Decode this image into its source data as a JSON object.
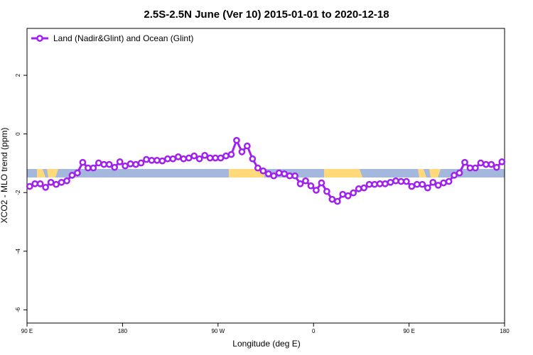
{
  "chart_data": {
    "type": "line",
    "title": "2.5S-2.5N June (Ver 10)   2015-01-01 to 2020-12-18",
    "xlabel": "Longitude (deg E)",
    "ylabel": "XCO2 - MLO trend (ppm)",
    "xlim": [
      90,
      540
    ],
    "ylim": [
      -6.45,
      3.6
    ],
    "xticks": [
      {
        "value": 90,
        "label": "90 E"
      },
      180,
      {
        "value": 270,
        "label": "90 W"
      },
      {
        "value": 360,
        "label": "0"
      },
      {
        "value": 450,
        "label": "90 E"
      },
      {
        "value": 540,
        "label": "180"
      }
    ],
    "yticks": [
      -6,
      -4,
      -2,
      0,
      2
    ],
    "legend": "upper left",
    "x": [
      92.5,
      97.5,
      102.5,
      107.5,
      112.5,
      117.5,
      122.5,
      127.5,
      132.5,
      137.5,
      142.5,
      147.5,
      152.5,
      157.5,
      162.5,
      167.5,
      172.5,
      177.5,
      182.5,
      187.5,
      192.5,
      197.5,
      202.5,
      207.5,
      212.5,
      217.5,
      222.5,
      227.5,
      232.5,
      237.5,
      242.5,
      247.5,
      252.5,
      257.5,
      262.5,
      267.5,
      272.5,
      277.5,
      282.5,
      287.5,
      292.5,
      297.5,
      302.5,
      307.5,
      312.5,
      317.5,
      322.5,
      327.5,
      332.5,
      337.5,
      342.5,
      347.5,
      352.5,
      357.5,
      362.5,
      367.5,
      372.5,
      377.5,
      382.5,
      387.5,
      392.5,
      397.5,
      402.5,
      407.5,
      412.5,
      417.5,
      422.5,
      427.5,
      432.5,
      437.5,
      442.5,
      447.5,
      452.5,
      457.5,
      462.5,
      467.5,
      472.5,
      477.5,
      482.5,
      487.5,
      492.5,
      497.5,
      502.5,
      507.5,
      512.5,
      517.5,
      522.5,
      527.5,
      532.5,
      537.5
    ],
    "series": [
      {
        "name": "Land (Nadir&Glint) and Ocean (Glint)",
        "color": "#a020f0",
        "values": [
          -1.79,
          -1.7,
          -1.7,
          -1.82,
          -1.65,
          -1.72,
          -1.65,
          -1.6,
          -1.41,
          -1.33,
          -0.97,
          -1.16,
          -1.16,
          -0.99,
          -1.04,
          -1.04,
          -1.14,
          -0.95,
          -1.09,
          -1.02,
          -1.04,
          -0.99,
          -0.87,
          -0.9,
          -0.9,
          -0.92,
          -0.85,
          -0.85,
          -0.78,
          -0.85,
          -0.82,
          -0.75,
          -0.85,
          -0.73,
          -0.82,
          -0.82,
          -0.82,
          -0.75,
          -0.7,
          -0.22,
          -0.61,
          -0.41,
          -0.85,
          -1.16,
          -1.26,
          -1.36,
          -1.43,
          -1.33,
          -1.36,
          -1.43,
          -1.43,
          -1.7,
          -1.6,
          -1.77,
          -1.92,
          -1.67,
          -1.96,
          -2.23,
          -2.3,
          -2.06,
          -2.11,
          -2.01,
          -1.87,
          -1.84,
          -1.72,
          -1.72,
          -1.7,
          -1.7,
          -1.65,
          -1.6,
          -1.62,
          -1.62,
          -1.79,
          -1.72,
          -1.72,
          -1.84,
          -1.65,
          -1.75,
          -1.67,
          -1.62,
          -1.41,
          -1.33,
          -0.97,
          -1.16,
          -1.16,
          -0.99,
          -1.04,
          -1.04,
          -1.14,
          -0.95
        ]
      }
    ]
  }
}
